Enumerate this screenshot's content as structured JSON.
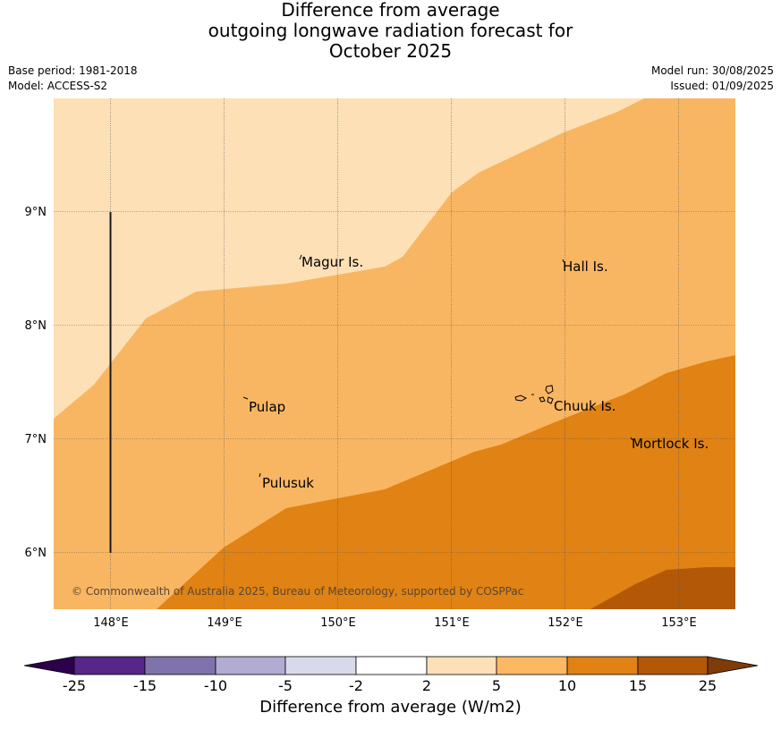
{
  "title": {
    "line1": "Difference from average",
    "line2": "outgoing longwave radiation forecast for",
    "line3": "October 2025"
  },
  "meta": {
    "base_period": "Base period: 1981-2018",
    "model": "Model: ACCESS-S2",
    "model_run": "Model run: 30/08/2025",
    "issued": "Issued: 01/09/2025"
  },
  "map": {
    "lon_range": [
      147.5,
      153.5
    ],
    "lat_range": [
      5.5,
      10.0
    ],
    "lon_ticks": [
      "148°E",
      "149°E",
      "150°E",
      "151°E",
      "152°E",
      "153°E"
    ],
    "lat_ticks": [
      "9°N",
      "8°N",
      "7°N",
      "6°N"
    ],
    "gridlines": true,
    "credit": "© Commonwealth of Australia 2025, Bureau of Meteorology, supported by COSPPac",
    "places": [
      {
        "name": "Magur Is.",
        "lon": 149.68,
        "lat": 8.57
      },
      {
        "name": "Hall Is.",
        "lon": 151.98,
        "lat": 8.53
      },
      {
        "name": "Pulap",
        "lon": 149.22,
        "lat": 7.3
      },
      {
        "name": "Chuuk Is.",
        "lon": 151.87,
        "lat": 7.3
      },
      {
        "name": "Mortlock Is.",
        "lon": 152.58,
        "lat": 6.97
      },
      {
        "name": "Pulusuk",
        "lon": 149.33,
        "lat": 6.64
      }
    ],
    "anomaly_bands": [
      {
        "class": "2 to 5",
        "color": "#fde0b6"
      },
      {
        "class": "5 to 10",
        "color": "#f9b662"
      },
      {
        "class": "10 to 15",
        "color": "#e08214"
      },
      {
        "class": "15 to 25",
        "color": "#b35806"
      }
    ]
  },
  "colorbar": {
    "title": "Difference from average (W/m2)",
    "ticks": [
      "-25",
      "-15",
      "-10",
      "-5",
      "-2",
      "2",
      "5",
      "10",
      "15",
      "25"
    ],
    "colors": [
      "#2d004b",
      "#542788",
      "#8073ac",
      "#b2abd2",
      "#d8daeb",
      "#ffffff",
      "#fee0b6",
      "#fdb863",
      "#e08214",
      "#b35806",
      "#7f3b08"
    ]
  }
}
